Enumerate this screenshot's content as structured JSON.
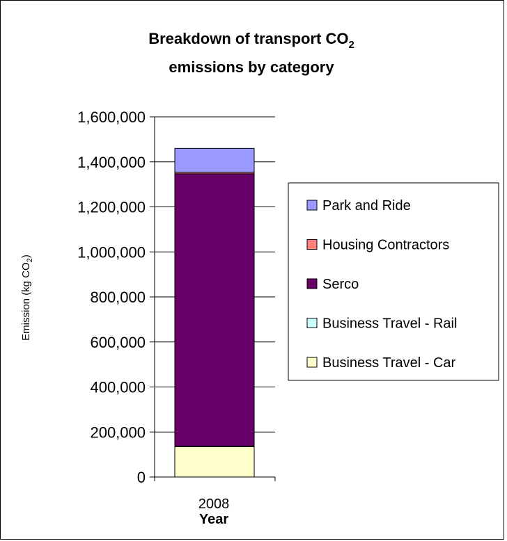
{
  "chart_data": {
    "type": "bar",
    "stacked": true,
    "title_line1": "Breakdown of transport CO",
    "title_subscript": "2",
    "title_line2": "emissions by category",
    "ylabel": "Emission (kg CO",
    "ylabel_subscript": "2",
    "ylabel_suffix": ")",
    "xlabel": "Year",
    "categories": [
      "2008"
    ],
    "ylim": [
      0,
      1600000
    ],
    "yticks": [
      "0",
      "200,000",
      "400,000",
      "600,000",
      "800,000",
      "1,000,000",
      "1,200,000",
      "1,400,000",
      "1,600,000"
    ],
    "grid": true,
    "legend_position": "right",
    "series": [
      {
        "name": "Business Travel - Car",
        "values": [
          135000
        ],
        "color": "#FFFFCC"
      },
      {
        "name": "Business Travel - Rail",
        "values": [
          2000
        ],
        "color": "#CCFFFF"
      },
      {
        "name": "Serco",
        "values": [
          1210000
        ],
        "color": "#660066"
      },
      {
        "name": "Housing Contractors",
        "values": [
          6000
        ],
        "color": "#FF8080"
      },
      {
        "name": "Park and Ride",
        "values": [
          107000
        ],
        "color": "#9999FF"
      }
    ]
  }
}
